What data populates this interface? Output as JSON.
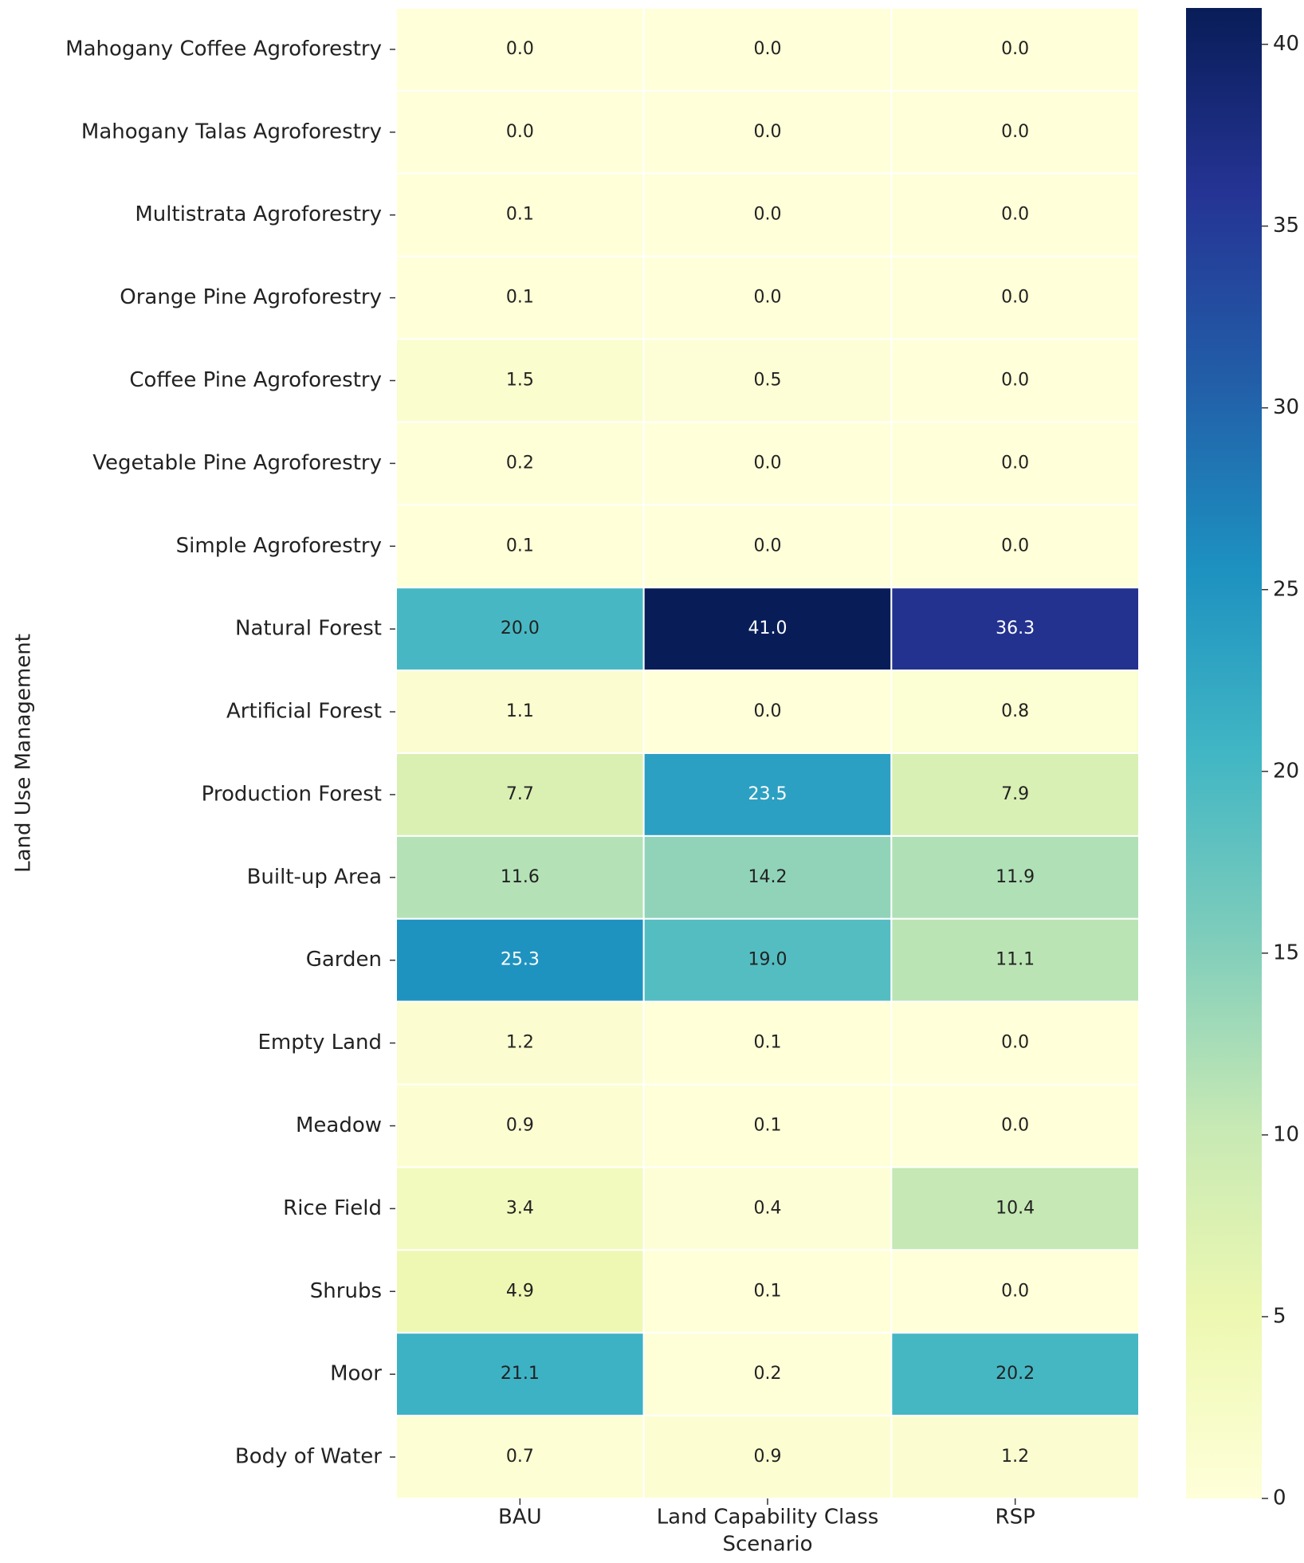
{
  "chart_data": {
    "type": "heatmap",
    "x_label": "Scenario",
    "y_label": "Land Use Management",
    "categories": [
      "BAU",
      "Land Capability Class",
      "RSP"
    ],
    "rows": [
      "Mahogany Coffee Agroforestry",
      "Mahogany Talas Agroforestry",
      "Multistrata Agroforestry",
      "Orange Pine Agroforestry",
      "Coffee Pine Agroforestry",
      "Vegetable Pine Agroforestry",
      "Simple Agroforestry",
      "Natural Forest",
      "Artificial Forest",
      "Production Forest",
      "Built-up Area",
      "Garden",
      "Empty Land",
      "Meadow",
      "Rice Field",
      "Shrubs",
      "Moor",
      "Body of Water"
    ],
    "values": [
      [
        0,
        0,
        0
      ],
      [
        0,
        0,
        0
      ],
      [
        0.1,
        0,
        0
      ],
      [
        0.1,
        0,
        0
      ],
      [
        1.5,
        0.5,
        0
      ],
      [
        0.2,
        0,
        0
      ],
      [
        0.1,
        0,
        0
      ],
      [
        20,
        41,
        36.3
      ],
      [
        1.1,
        0,
        0.8
      ],
      [
        7.7,
        23.5,
        7.9
      ],
      [
        11.6,
        14.2,
        11.9
      ],
      [
        25.3,
        19,
        11.1
      ],
      [
        1.2,
        0.1,
        0
      ],
      [
        0.9,
        0.1,
        0
      ],
      [
        3.4,
        0.4,
        10.4
      ],
      [
        4.9,
        0.1,
        0
      ],
      [
        21.1,
        0.2,
        20.2
      ],
      [
        0.7,
        0.9,
        1.2
      ]
    ],
    "value_labels": [
      [
        "0.0",
        "0.0",
        "0.0"
      ],
      [
        "0.0",
        "0.0",
        "0.0"
      ],
      [
        "0.1",
        "0.0",
        "0.0"
      ],
      [
        "0.1",
        "0.0",
        "0.0"
      ],
      [
        "1.5",
        "0.5",
        "0.0"
      ],
      [
        "0.2",
        "0.0",
        "0.0"
      ],
      [
        "0.1",
        "0.0",
        "0.0"
      ],
      [
        "20.0",
        "41.0",
        "36.3"
      ],
      [
        "1.1",
        "0.0",
        "0.8"
      ],
      [
        "7.7",
        "23.5",
        "7.9"
      ],
      [
        "11.6",
        "14.2",
        "11.9"
      ],
      [
        "25.3",
        "19.0",
        "11.1"
      ],
      [
        "1.2",
        "0.1",
        "0.0"
      ],
      [
        "0.9",
        "0.1",
        "0.0"
      ],
      [
        "3.4",
        "0.4",
        "10.4"
      ],
      [
        "4.9",
        "0.1",
        "0.0"
      ],
      [
        "21.1",
        "0.2",
        "20.2"
      ],
      [
        "0.7",
        "0.9",
        "1.2"
      ]
    ],
    "colormap": "YlGnBu",
    "zlim": [
      0,
      41
    ],
    "zticks": [
      0,
      5,
      10,
      15,
      20,
      25,
      30,
      35,
      40
    ]
  }
}
